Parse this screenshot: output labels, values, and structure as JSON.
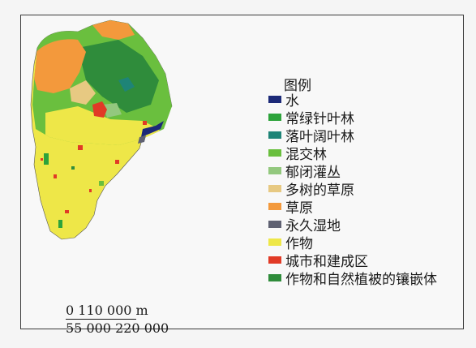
{
  "legend": {
    "title": "图例",
    "items": [
      {
        "label": "水",
        "color": "#1c2a78"
      },
      {
        "label": "常绿针叶林",
        "color": "#2da33b"
      },
      {
        "label": "落叶阔叶林",
        "color": "#1e8477"
      },
      {
        "label": "混交林",
        "color": "#6abf3e"
      },
      {
        "label": "郁闭灌丛",
        "color": "#93c87e"
      },
      {
        "label": "多树的草原",
        "color": "#e7c982"
      },
      {
        "label": "草原",
        "color": "#f3993c"
      },
      {
        "label": "永久湿地",
        "color": "#5f6172"
      },
      {
        "label": "作物",
        "color": "#eee748"
      },
      {
        "label": "城市和建成区",
        "color": "#e13a26"
      },
      {
        "label": "作物和自然植被的镶嵌体",
        "color": "#2f8c3b"
      }
    ]
  },
  "scale": {
    "top_text": "0  110 000  m",
    "bottom_text": "55 000  220 000"
  }
}
